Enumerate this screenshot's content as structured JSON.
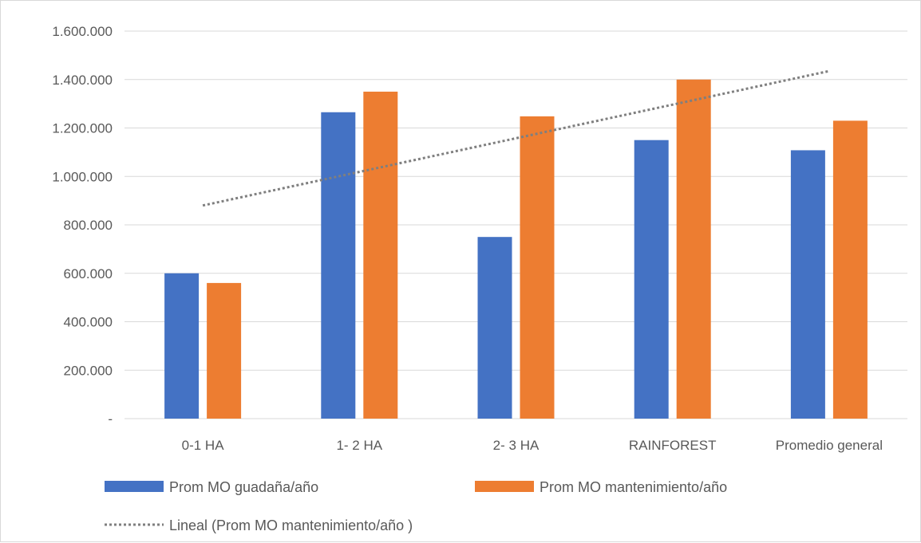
{
  "chart_data": {
    "type": "bar",
    "title": "",
    "xlabel": "",
    "ylabel": "",
    "categories": [
      "0-1 HA",
      "1- 2 HA",
      "2- 3 HA",
      "RAINFOREST",
      "Promedio general"
    ],
    "series": [
      {
        "name": "Prom MO guadaña/año",
        "values": [
          600000,
          1265000,
          750000,
          1150000,
          1108000
        ],
        "color": "#4472C4"
      },
      {
        "name": "Prom MO mantenimiento/año",
        "values": [
          560000,
          1350000,
          1248000,
          1400000,
          1230000
        ],
        "color": "#ED7D31"
      }
    ],
    "trendline": {
      "name": "Lineal (Prom MO mantenimiento/año )",
      "type": "linear",
      "of_series": "Prom MO mantenimiento/año",
      "start_value": 880000,
      "end_value": 1435000,
      "color": "#7F7F7F"
    },
    "ylim": [
      0,
      1600000
    ],
    "y_ticks": [
      0,
      200000,
      400000,
      600000,
      800000,
      1000000,
      1200000,
      1400000,
      1600000
    ],
    "y_tick_labels": [
      "-",
      "200.000",
      "400.000",
      "600.000",
      "800.000",
      "1.000.000",
      "1.200.000",
      "1.400.000",
      "1.600.000"
    ],
    "grid": true,
    "legend_position": "bottom"
  }
}
